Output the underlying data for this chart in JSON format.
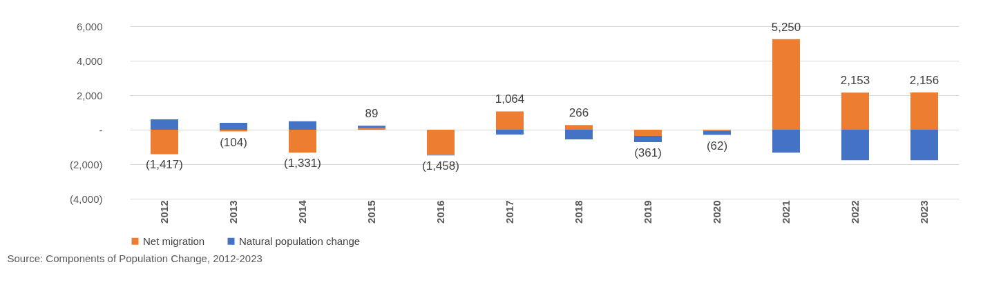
{
  "chart_data": {
    "type": "bar",
    "stacked": true,
    "categories": [
      "2012",
      "2013",
      "2014",
      "2015",
      "2016",
      "2017",
      "2018",
      "2019",
      "2020",
      "2021",
      "2022",
      "2023"
    ],
    "series": [
      {
        "name": "Net migration",
        "color": "#ed7d31",
        "values": [
          -1417,
          -104,
          -1331,
          89,
          -1458,
          1064,
          266,
          -361,
          -62,
          5250,
          2153,
          2156
        ],
        "value_labels": [
          "(1,417)",
          "(104)",
          "(1,331)",
          "89",
          "(1,458)",
          "1,064",
          "266",
          "(361)",
          "(62)",
          "5,250",
          "2,153",
          "2,156"
        ]
      },
      {
        "name": "Natural population change",
        "color": "#4472c4",
        "values": [
          600,
          400,
          490,
          140,
          -30,
          -280,
          -560,
          -360,
          -240,
          -1330,
          -1770,
          -1770
        ]
      }
    ],
    "ylim": [
      -4000,
      6000
    ],
    "yticks": [
      {
        "value": -4000,
        "label": "(4,000)"
      },
      {
        "value": -2000,
        "label": "(2,000)"
      },
      {
        "value": 0,
        "label": "-"
      },
      {
        "value": 2000,
        "label": "2,000"
      },
      {
        "value": 4000,
        "label": "4,000"
      },
      {
        "value": 6000,
        "label": "6,000"
      }
    ],
    "grid": "y",
    "legend": "bottom",
    "annotations": [
      "Source: Components of Population Change, 2012-2023"
    ]
  }
}
